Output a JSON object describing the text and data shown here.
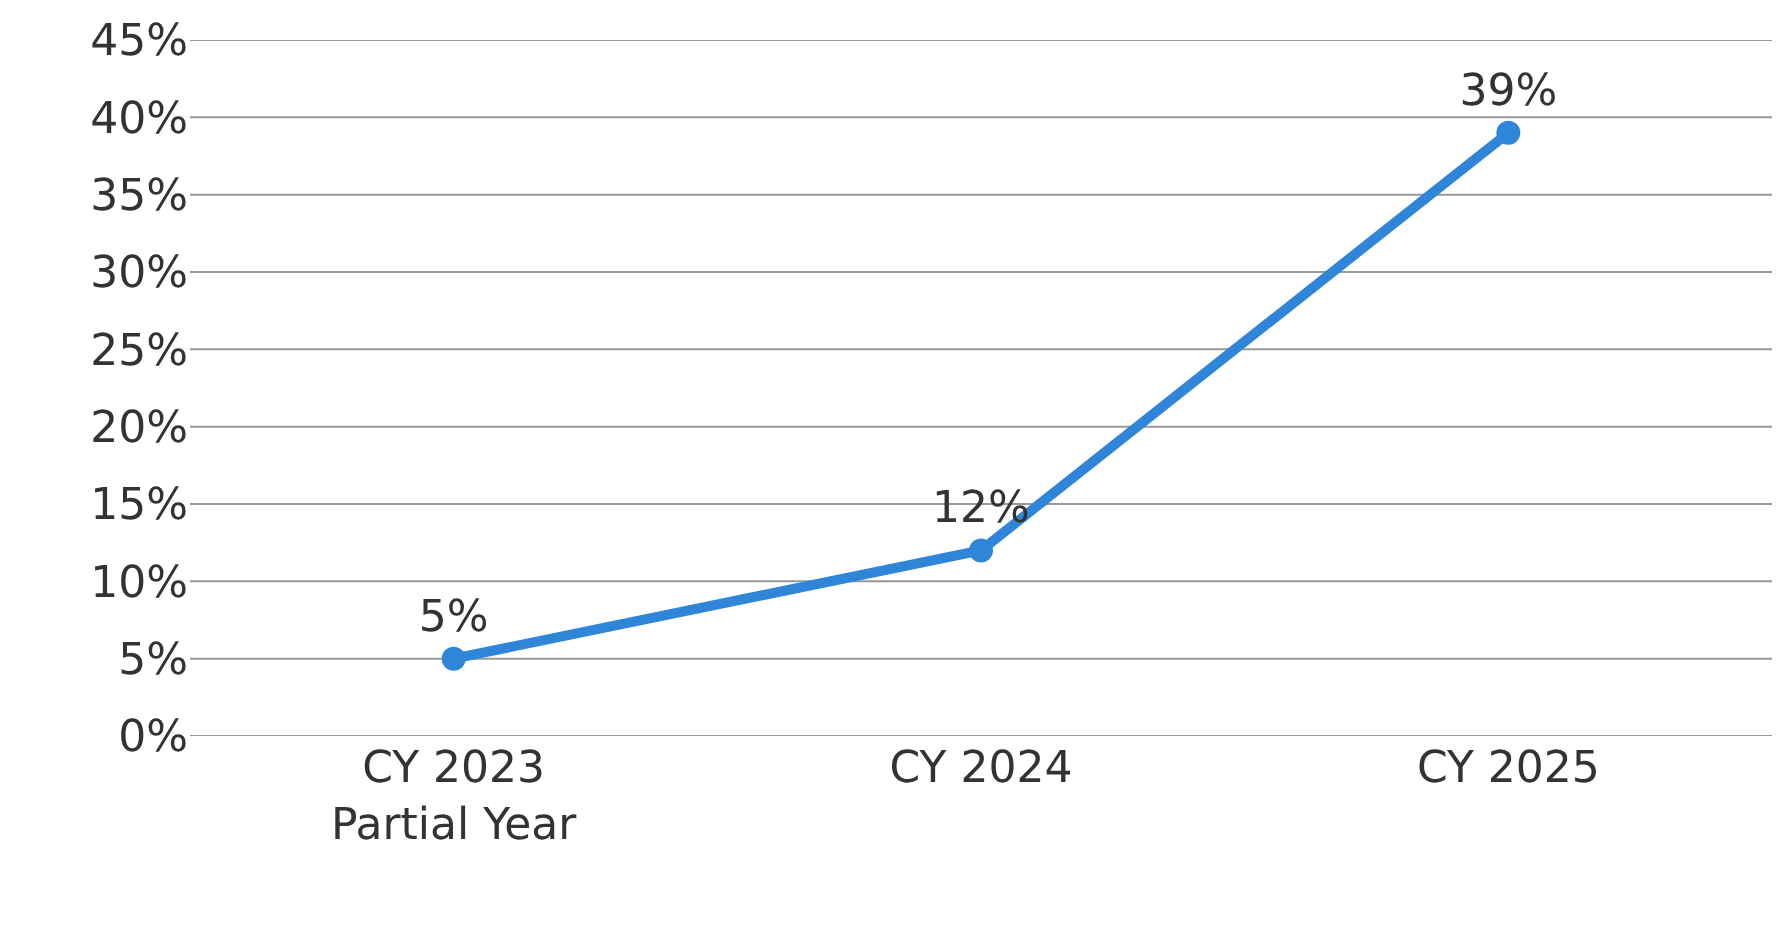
{
  "chart_data": {
    "type": "line",
    "categories": [
      "CY 2023\nPartial Year",
      "CY 2024",
      "CY 2025"
    ],
    "series": [
      {
        "color": "#2f86d9",
        "values": [
          5,
          12,
          39
        ],
        "value_labels": [
          "5%",
          "12%",
          "39%"
        ]
      }
    ],
    "ylim": [
      0,
      45
    ],
    "yticks": [
      {
        "value": 0,
        "label": "0%"
      },
      {
        "value": 5,
        "label": "5%"
      },
      {
        "value": 10,
        "label": "10%"
      },
      {
        "value": 15,
        "label": "15%"
      },
      {
        "value": 20,
        "label": "20%"
      },
      {
        "value": 25,
        "label": "25%"
      },
      {
        "value": 30,
        "label": "30%"
      },
      {
        "value": 35,
        "label": "35%"
      },
      {
        "value": 40,
        "label": "40%"
      },
      {
        "value": 45,
        "label": "45%"
      }
    ],
    "grid": "y",
    "marker": "circle",
    "line_style": "solid"
  }
}
